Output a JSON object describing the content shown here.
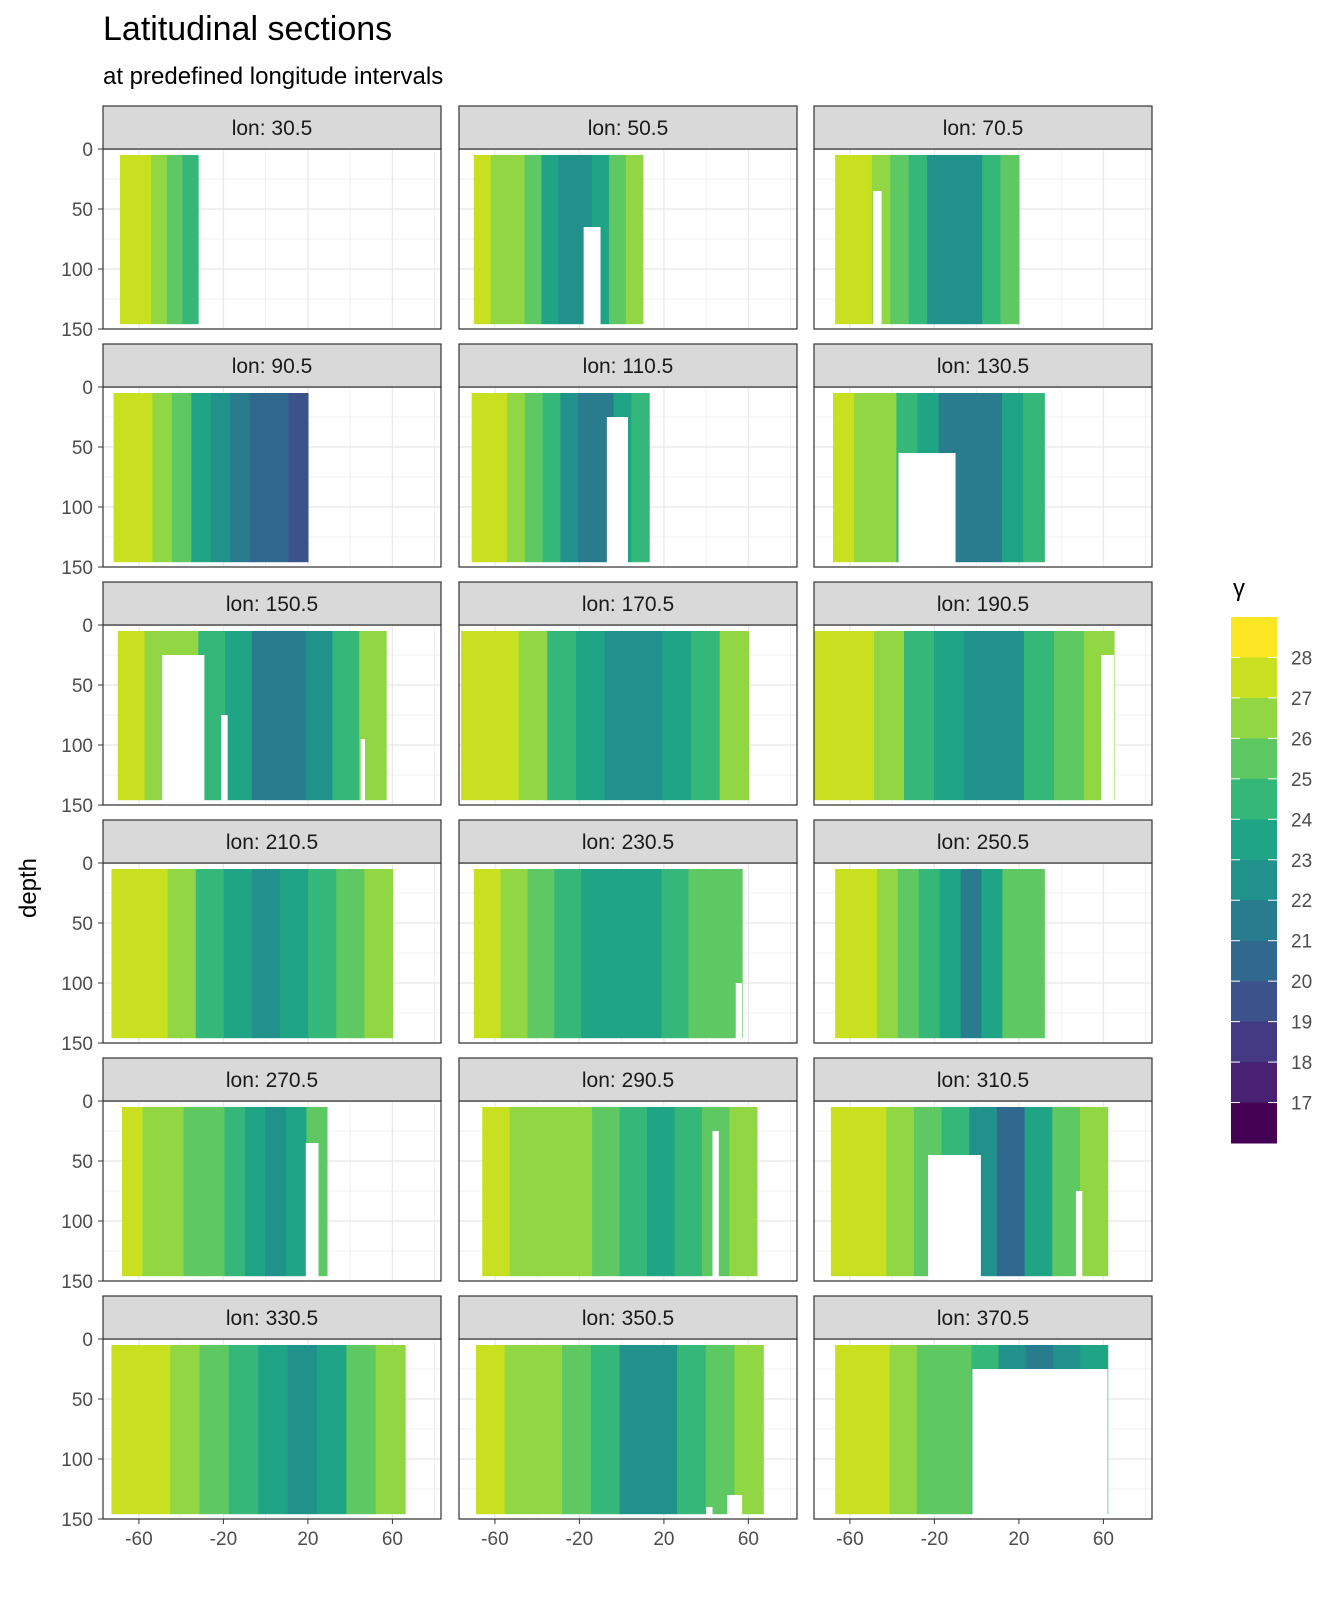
{
  "title": "Latitudinal sections",
  "subtitle": "at predefined longitude intervals",
  "chart_data": {
    "type": "heatmap",
    "title": "Latitudinal sections",
    "subtitle": "at predefined longitude intervals",
    "xlabel": "",
    "ylabel": "depth",
    "xlim": [
      -77,
      83
    ],
    "ylim": [
      150,
      0
    ],
    "x_ticks": [
      -60,
      -20,
      20,
      60
    ],
    "y_ticks": [
      0,
      50,
      100,
      150
    ],
    "legend": {
      "title": "γ",
      "levels": [
        28,
        27,
        26,
        25,
        24,
        23,
        22,
        21,
        20,
        19,
        18,
        17
      ],
      "colors": [
        "#fde725",
        "#c8e020",
        "#90d743",
        "#5ec962",
        "#35b779",
        "#20a486",
        "#21918c",
        "#287c8e",
        "#31688e",
        "#3b528b",
        "#443983",
        "#482173",
        "#440154"
      ]
    },
    "panels": [
      {
        "label": "lon: 30.5",
        "lat": [
          -69,
          -32
        ],
        "depth": [
          5,
          146
        ],
        "cols": [
          27.3,
          27.0,
          26.5,
          25.0,
          24.0
        ],
        "gaps": []
      },
      {
        "label": "lon: 50.5",
        "lat": [
          -70,
          10
        ],
        "depth": [
          5,
          146
        ],
        "cols": [
          27.2,
          26.8,
          26.0,
          25.0,
          23.5,
          22.0,
          22.0,
          23.5,
          25.5,
          26.5
        ],
        "gaps": [
          [
            -18,
            -10,
            65
          ]
        ]
      },
      {
        "label": "lon: 70.5",
        "lat": [
          -67,
          20
        ],
        "depth": [
          5,
          146
        ],
        "cols": [
          27.3,
          27.0,
          26.4,
          25.5,
          24.0,
          22.5,
          22.0,
          22.5,
          24.0,
          25.2
        ],
        "gaps": [
          [
            -49,
            -45,
            35
          ]
        ]
      },
      {
        "label": "lon: 90.5",
        "lat": [
          -72,
          20
        ],
        "depth": [
          5,
          146
        ],
        "cols": [
          27.3,
          27.0,
          26.3,
          25.2,
          23.8,
          22.5,
          21.5,
          20.8,
          20.5,
          19.5
        ],
        "gaps": []
      },
      {
        "label": "lon: 110.5",
        "lat": [
          -71,
          13
        ],
        "depth": [
          5,
          146
        ],
        "cols": [
          27.3,
          27.0,
          26.3,
          25.2,
          24.0,
          22.5,
          21.0,
          21.5,
          23.0,
          24.5
        ],
        "gaps": [
          [
            -7,
            3,
            25
          ]
        ]
      },
      {
        "label": "lon: 130.5",
        "lat": [
          -68,
          32
        ],
        "depth": [
          5,
          146
        ],
        "cols": [
          27.3,
          26.8,
          26.0,
          24.8,
          23.0,
          21.5,
          21.0,
          21.8,
          23.0,
          24.5
        ],
        "gaps": [
          [
            -37,
            -10,
            55
          ]
        ]
      },
      {
        "label": "lon: 150.5",
        "lat": [
          -70,
          57
        ],
        "depth": [
          5,
          146
        ],
        "cols": [
          27.3,
          26.9,
          26.0,
          24.8,
          23.2,
          21.8,
          21.5,
          22.8,
          24.5,
          26.3
        ],
        "gaps": [
          [
            -49,
            -29,
            25
          ],
          [
            -21,
            -18,
            75
          ],
          [
            45,
            47,
            95
          ]
        ]
      },
      {
        "label": "lon: 170.5",
        "lat": [
          -76,
          60
        ],
        "depth": [
          5,
          146
        ],
        "cols": [
          27.6,
          27.0,
          26.0,
          24.6,
          23.0,
          22.2,
          22.2,
          23.2,
          24.8,
          26.5
        ],
        "gaps": []
      },
      {
        "label": "lon: 190.5",
        "lat": [
          -77,
          65
        ],
        "depth": [
          5,
          146
        ],
        "cols": [
          27.3,
          27.0,
          26.0,
          24.7,
          23.0,
          22.0,
          22.6,
          24.0,
          25.5,
          26.5
        ],
        "gaps": [
          [
            59,
            65,
            25
          ]
        ]
      },
      {
        "label": "lon: 210.5",
        "lat": [
          -73,
          60
        ],
        "depth": [
          5,
          146
        ],
        "cols": [
          27.3,
          27.0,
          26.0,
          24.8,
          23.5,
          22.6,
          23.3,
          24.6,
          25.3,
          26.0
        ],
        "gaps": []
      },
      {
        "label": "lon: 230.5",
        "lat": [
          -70,
          57
        ],
        "depth": [
          5,
          146
        ],
        "cols": [
          27.3,
          26.8,
          25.8,
          24.8,
          23.8,
          23.0,
          23.5,
          24.5,
          25.3,
          25.8
        ],
        "gaps": [
          [
            54,
            57,
            100
          ]
        ]
      },
      {
        "label": "lon: 250.5",
        "lat": [
          -67,
          32
        ],
        "depth": [
          5,
          146
        ],
        "cols": [
          27.3,
          27.0,
          26.0,
          25.0,
          24.0,
          23.0,
          21.5,
          23.5,
          25.0,
          25.3
        ],
        "gaps": []
      },
      {
        "label": "lon: 270.5",
        "lat": [
          -68,
          29
        ],
        "depth": [
          5,
          146
        ],
        "cols": [
          27.3,
          26.8,
          26.0,
          25.5,
          25.0,
          24.2,
          23.0,
          22.0,
          23.5,
          25.0
        ],
        "gaps": [
          [
            19,
            25,
            35
          ]
        ]
      },
      {
        "label": "lon: 290.5",
        "lat": [
          -66,
          64
        ],
        "depth": [
          5,
          146
        ],
        "cols": [
          27.1,
          26.8,
          26.4,
          26.0,
          25.0,
          24.0,
          23.0,
          24.5,
          25.8,
          26.4
        ],
        "gaps": [
          [
            43,
            46,
            25
          ]
        ]
      },
      {
        "label": "lon: 310.5",
        "lat": [
          -69,
          62
        ],
        "depth": [
          5,
          146
        ],
        "cols": [
          27.4,
          27.0,
          26.5,
          25.5,
          24.0,
          22.5,
          20.5,
          23.0,
          25.5,
          26.5
        ],
        "gaps": [
          [
            -23,
            2,
            45
          ],
          [
            47,
            50,
            75
          ]
        ]
      },
      {
        "label": "lon: 330.5",
        "lat": [
          -73,
          66
        ],
        "depth": [
          5,
          146
        ],
        "cols": [
          27.5,
          27.0,
          26.3,
          25.5,
          24.5,
          23.2,
          22.0,
          23.2,
          25.2,
          26.8
        ],
        "gaps": []
      },
      {
        "label": "lon: 350.5",
        "lat": [
          -69,
          67
        ],
        "depth": [
          5,
          146
        ],
        "cols": [
          27.3,
          26.8,
          26.0,
          25.3,
          24.0,
          22.5,
          22.3,
          24.0,
          25.5,
          26.5
        ],
        "gaps": [
          [
            40,
            43,
            140
          ],
          [
            50,
            57,
            130
          ]
        ]
      },
      {
        "label": "lon: 370.5",
        "lat": [
          -67,
          62
        ],
        "depth": [
          5,
          146
        ],
        "cols": [
          27.3,
          27.0,
          26.5,
          25.8,
          25.0,
          24.0,
          22.0,
          21.5,
          22.0,
          23.0
        ],
        "gaps": [
          [
            -2,
            62,
            25
          ]
        ]
      }
    ]
  }
}
